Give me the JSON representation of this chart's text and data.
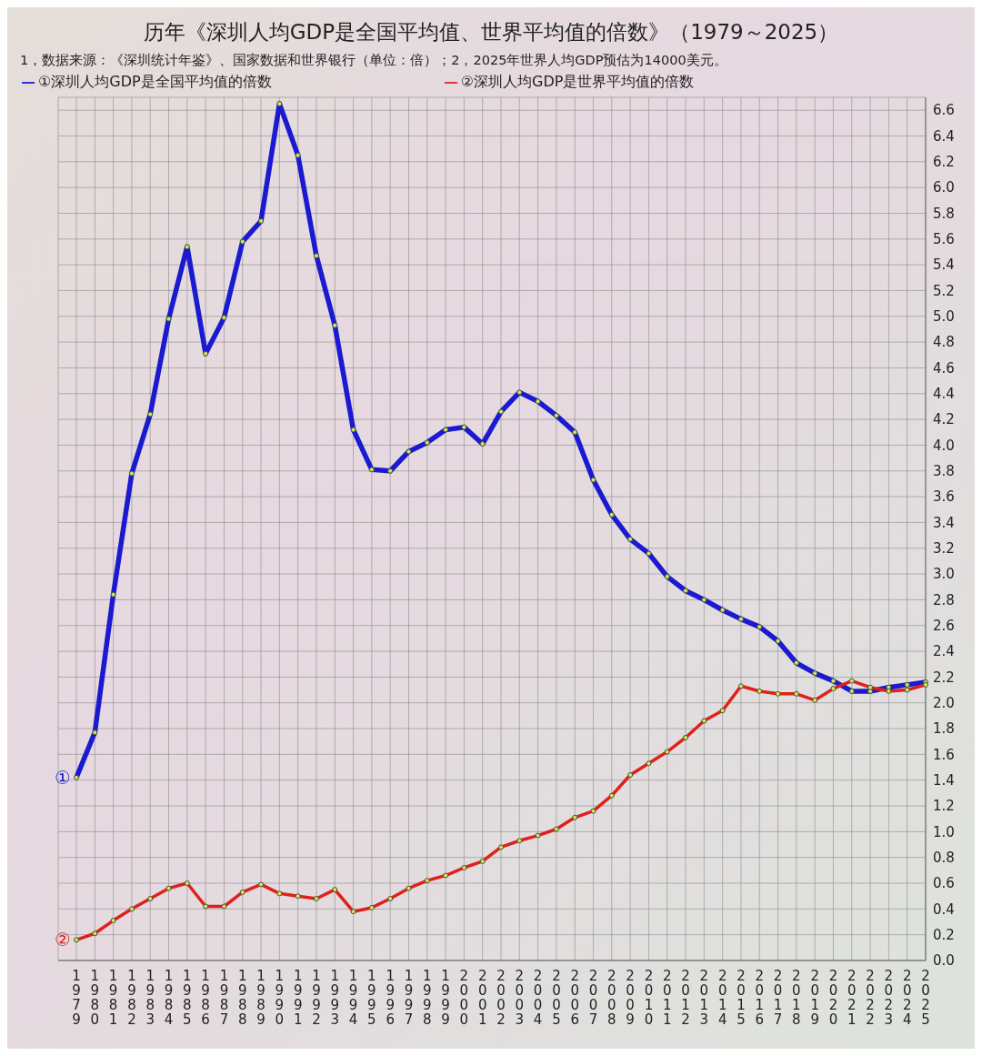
{
  "chart_data": {
    "type": "line",
    "title": "历年《深圳人均GDP是全国平均值、世界平均值的倍数》（1979～2025）",
    "subtitle": "1，数据来源：《深圳统计年鉴》、国家数据和世界银行（单位：倍）；2，2025年世界人均GDP预估为14000美元。",
    "categories": [
      "1979",
      "1980",
      "1981",
      "1982",
      "1983",
      "1984",
      "1985",
      "1986",
      "1987",
      "1988",
      "1989",
      "1990",
      "1991",
      "1992",
      "1993",
      "1994",
      "1995",
      "1996",
      "1997",
      "1998",
      "1999",
      "2000",
      "2001",
      "2002",
      "2003",
      "2004",
      "2005",
      "2006",
      "2007",
      "2008",
      "2009",
      "2010",
      "2011",
      "2012",
      "2013",
      "2014",
      "2015",
      "2016",
      "2017",
      "2018",
      "2019",
      "2020",
      "2021",
      "2022",
      "2023",
      "2024",
      "2025"
    ],
    "series": [
      {
        "name": "①深圳人均GDP是全国平均值的倍数",
        "color": "#1a1ad0",
        "values": [
          1.42,
          1.77,
          2.84,
          3.78,
          4.24,
          4.98,
          5.54,
          4.71,
          4.99,
          5.58,
          5.74,
          6.65,
          6.25,
          5.47,
          4.93,
          4.12,
          3.81,
          3.8,
          3.95,
          4.02,
          4.12,
          4.14,
          4.01,
          4.26,
          4.41,
          4.34,
          4.23,
          4.1,
          3.73,
          3.46,
          3.27,
          3.16,
          2.98,
          2.87,
          2.8,
          2.72,
          2.65,
          2.59,
          2.48,
          2.31,
          2.23,
          2.17,
          2.09,
          2.09,
          2.12,
          2.14,
          2.16
        ]
      },
      {
        "name": "②深圳人均GDP是世界平均值的倍数",
        "color": "#e0201c",
        "values": [
          0.16,
          0.21,
          0.31,
          0.4,
          0.48,
          0.56,
          0.6,
          0.42,
          0.42,
          0.53,
          0.59,
          0.52,
          0.5,
          0.48,
          0.55,
          0.38,
          0.41,
          0.48,
          0.56,
          0.62,
          0.66,
          0.72,
          0.77,
          0.88,
          0.93,
          0.97,
          1.02,
          1.11,
          1.16,
          1.28,
          1.44,
          1.53,
          1.62,
          1.73,
          1.86,
          1.94,
          2.13,
          2.09,
          2.07,
          2.07,
          2.02,
          2.11,
          2.17,
          2.12,
          2.09,
          2.1,
          2.14
        ]
      }
    ],
    "ylim": [
      0,
      6.7
    ],
    "yticks": [
      {
        "value": 0,
        "label": "0.0"
      },
      {
        "value": 0.2,
        "label": "0.2"
      },
      {
        "value": 0.4,
        "label": "0.4"
      },
      {
        "value": 0.6,
        "label": "0.6"
      },
      {
        "value": 0.8,
        "label": "0.8"
      },
      {
        "value": 1,
        "label": "1.0"
      },
      {
        "value": 1.2,
        "label": "1.2"
      },
      {
        "value": 1.4,
        "label": "1.4"
      },
      {
        "value": 1.6,
        "label": "1.6"
      },
      {
        "value": 1.8,
        "label": "1.8"
      },
      {
        "value": 2,
        "label": "2.0"
      },
      {
        "value": 2.2,
        "label": "2.2"
      },
      {
        "value": 2.4,
        "label": "2.4"
      },
      {
        "value": 2.6,
        "label": "2.6"
      },
      {
        "value": 2.8,
        "label": "2.8"
      },
      {
        "value": 3,
        "label": "3.0"
      },
      {
        "value": 3.2,
        "label": "3.2"
      },
      {
        "value": 3.4,
        "label": "3.4"
      },
      {
        "value": 3.6,
        "label": "3.6"
      },
      {
        "value": 3.8,
        "label": "3.8"
      },
      {
        "value": 4,
        "label": "4.0"
      },
      {
        "value": 4.2,
        "label": "4.2"
      },
      {
        "value": 4.4,
        "label": "4.4"
      },
      {
        "value": 4.6,
        "label": "4.6"
      },
      {
        "value": 4.8,
        "label": "4.8"
      },
      {
        "value": 5,
        "label": "5.0"
      },
      {
        "value": 5.2,
        "label": "5.2"
      },
      {
        "value": 5.4,
        "label": "5.4"
      },
      {
        "value": 5.6,
        "label": "5.6"
      },
      {
        "value": 5.8,
        "label": "5.8"
      },
      {
        "value": 6,
        "label": "6.0"
      },
      {
        "value": 6.2,
        "label": "6.2"
      },
      {
        "value": 6.4,
        "label": "6.4"
      },
      {
        "value": 6.6,
        "label": "6.6"
      }
    ],
    "annotations": [
      {
        "text": "①",
        "x": "1979",
        "y": 1.42
      },
      {
        "text": "②",
        "x": "1979",
        "y": 0.16
      }
    ],
    "grid": true,
    "legend": "top left",
    "marker": "circle",
    "line_style": "solid"
  }
}
